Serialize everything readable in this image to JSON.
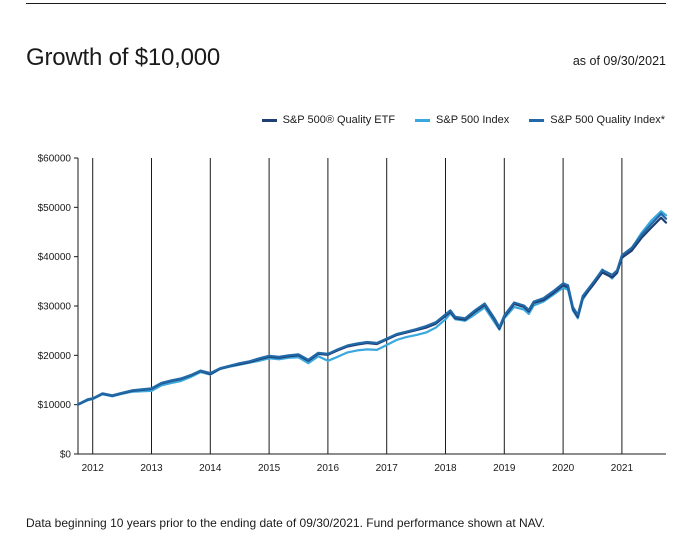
{
  "header": {
    "title": "Growth of $10,000",
    "as_of": "as of 09/30/2021"
  },
  "footnote": "Data beginning 10 years prior to the ending date of 09/30/2021. Fund performance shown at NAV.",
  "colors": {
    "etf": "#1f3f74",
    "index": "#3aa7dd",
    "quality_index": "#2269a8"
  },
  "chart_data": {
    "type": "line",
    "title": "Growth of $10,000",
    "xlabel": "",
    "ylabel": "",
    "ylim": [
      0,
      60000
    ],
    "xlim": [
      2011.75,
      2021.75
    ],
    "yticks": [
      0,
      10000,
      20000,
      30000,
      40000,
      50000,
      60000
    ],
    "ytick_labels": [
      "$0",
      "$10000",
      "$20000",
      "$30000",
      "$40000",
      "$50000",
      "$60000"
    ],
    "xticks": [
      2012,
      2013,
      2014,
      2015,
      2016,
      2017,
      2018,
      2019,
      2020,
      2021
    ],
    "xtick_labels": [
      "2012",
      "2013",
      "2014",
      "2015",
      "2016",
      "2017",
      "2018",
      "2019",
      "2020",
      "2021"
    ],
    "grid": "vertical lines at each year",
    "legend_position": "top-right",
    "x": [
      2011.75,
      2011.917,
      2012.0,
      2012.167,
      2012.333,
      2012.5,
      2012.667,
      2012.833,
      2013.0,
      2013.167,
      2013.333,
      2013.5,
      2013.667,
      2013.833,
      2014.0,
      2014.167,
      2014.333,
      2014.5,
      2014.667,
      2014.833,
      2015.0,
      2015.167,
      2015.333,
      2015.5,
      2015.667,
      2015.833,
      2016.0,
      2016.167,
      2016.333,
      2016.5,
      2016.667,
      2016.833,
      2017.0,
      2017.167,
      2017.333,
      2017.5,
      2017.667,
      2017.833,
      2018.0,
      2018.083,
      2018.167,
      2018.333,
      2018.5,
      2018.667,
      2018.833,
      2018.917,
      2019.0,
      2019.167,
      2019.333,
      2019.417,
      2019.5,
      2019.667,
      2019.833,
      2020.0,
      2020.083,
      2020.167,
      2020.25,
      2020.333,
      2020.5,
      2020.667,
      2020.833,
      2020.917,
      2021.0,
      2021.167,
      2021.333,
      2021.5,
      2021.667,
      2021.75
    ],
    "series": [
      {
        "name": "S&P 500® Quality ETF",
        "color": "#1f3f74",
        "values": [
          10000,
          11000,
          11200,
          12200,
          11800,
          12300,
          12800,
          13000,
          13200,
          14300,
          14800,
          15200,
          15900,
          16800,
          16200,
          17300,
          17800,
          18200,
          18600,
          19200,
          19700,
          19500,
          19800,
          20000,
          18900,
          20300,
          20100,
          21000,
          21800,
          22200,
          22500,
          22300,
          23200,
          24100,
          24600,
          25100,
          25600,
          26400,
          28000,
          28800,
          27500,
          27200,
          28800,
          30200,
          27200,
          25400,
          27800,
          30400,
          29800,
          28900,
          30600,
          31200,
          32600,
          34200,
          33800,
          29400,
          27800,
          31600,
          34100,
          36800,
          35800,
          36700,
          39800,
          41200,
          43800,
          45900,
          47900,
          46900
        ]
      },
      {
        "name": "S&P 500 Index",
        "color": "#3aa7dd",
        "values": [
          10000,
          10900,
          11100,
          12100,
          11700,
          12200,
          12600,
          12700,
          12800,
          13900,
          14400,
          14800,
          15600,
          16600,
          16100,
          17200,
          17700,
          18100,
          18500,
          18900,
          19400,
          19200,
          19500,
          19600,
          18400,
          19800,
          18900,
          19700,
          20600,
          21000,
          21200,
          21100,
          22100,
          23100,
          23700,
          24100,
          24600,
          25600,
          27300,
          28500,
          27300,
          27000,
          28300,
          29700,
          26700,
          25200,
          27500,
          29800,
          29300,
          28400,
          30100,
          30900,
          32300,
          33700,
          33300,
          29100,
          27500,
          31300,
          34300,
          37400,
          35600,
          36700,
          39700,
          41700,
          44800,
          47300,
          49200,
          48400
        ]
      },
      {
        "name": "S&P 500 Quality Index*",
        "color": "#2269a8",
        "values": [
          10100,
          11100,
          11300,
          12300,
          11900,
          12400,
          12900,
          13100,
          13300,
          14400,
          14900,
          15300,
          16000,
          16900,
          16400,
          17400,
          17900,
          18400,
          18800,
          19400,
          19900,
          19700,
          20000,
          20200,
          19100,
          20500,
          20300,
          21200,
          22000,
          22400,
          22700,
          22500,
          23400,
          24300,
          24800,
          25300,
          25900,
          26700,
          28300,
          29100,
          27800,
          27500,
          29100,
          30500,
          27500,
          25700,
          28100,
          30700,
          30100,
          29200,
          30900,
          31600,
          33000,
          34600,
          34200,
          29800,
          28200,
          32000,
          34600,
          37300,
          36300,
          37200,
          40300,
          41800,
          44400,
          46600,
          48700,
          47700
        ]
      }
    ]
  }
}
